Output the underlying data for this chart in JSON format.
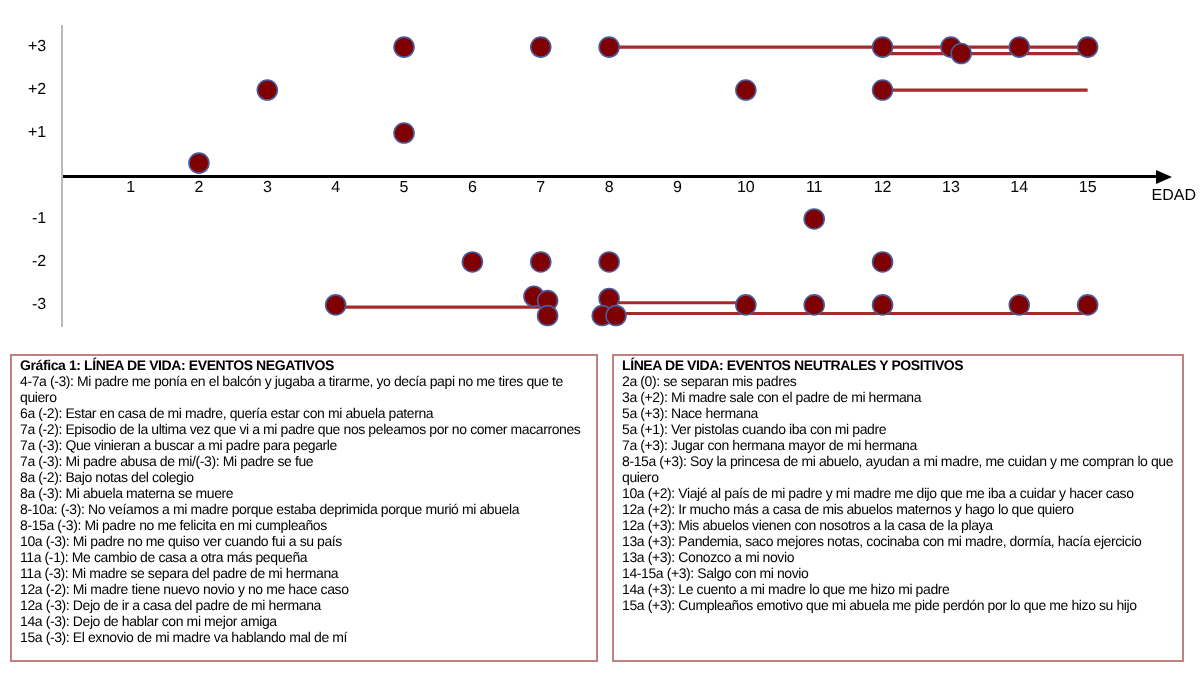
{
  "chart_data": [
    {
      "type": "scatter",
      "xlabel": "EDAD",
      "xlim": [
        0,
        16
      ],
      "xticks": [
        1,
        2,
        3,
        4,
        5,
        6,
        7,
        8,
        9,
        10,
        11,
        12,
        13,
        14,
        15
      ],
      "ylim": [
        -3.5,
        3.5
      ],
      "yticks": [
        {
          "value": 3,
          "label": "+3"
        },
        {
          "value": 2,
          "label": "+2"
        },
        {
          "value": 1,
          "label": "+1"
        },
        {
          "value": -1,
          "label": "-1"
        },
        {
          "value": -2,
          "label": "-2"
        },
        {
          "value": -3,
          "label": "-3"
        }
      ],
      "grid": false,
      "legend": false,
      "series": [
        {
          "type": "scatter",
          "marker": "circle",
          "color": "#7f0000",
          "x": [
            2,
            3,
            5,
            5,
            7,
            8,
            10,
            12,
            12,
            13,
            13.15,
            14,
            15,
            4,
            6,
            7,
            6.9,
            7.1,
            7.1,
            8,
            8,
            7.9,
            8.1,
            10,
            11,
            11,
            12,
            12,
            14,
            15
          ],
          "values": [
            0.3,
            2,
            3,
            1,
            3,
            3,
            2,
            3,
            2,
            3,
            2.85,
            3,
            3,
            -3,
            -2,
            -2,
            -2.8,
            -2.9,
            -3.25,
            -2,
            -2.85,
            -3.25,
            -3.25,
            -3,
            -1,
            -3,
            -2,
            -3,
            -3,
            -3
          ]
        },
        {
          "type": "line",
          "marker": "none",
          "color": "#a52a2a",
          "x": [
            8,
            15
          ],
          "values": [
            3,
            3
          ]
        },
        {
          "type": "line",
          "marker": "none",
          "color": "#a52a2a",
          "x": [
            12,
            15
          ],
          "values": [
            2.85,
            2.85
          ]
        },
        {
          "type": "line",
          "marker": "none",
          "color": "#a52a2a",
          "x": [
            12,
            15
          ],
          "values": [
            2,
            2
          ]
        },
        {
          "type": "line",
          "marker": "none",
          "color": "#a52a2a",
          "x": [
            4,
            7
          ],
          "values": [
            -3.05,
            -3.05
          ]
        },
        {
          "type": "line",
          "marker": "none",
          "color": "#a52a2a",
          "x": [
            8,
            10
          ],
          "values": [
            -2.95,
            -2.95
          ]
        },
        {
          "type": "line",
          "marker": "none",
          "color": "#a52a2a",
          "x": [
            8,
            15
          ],
          "values": [
            -3.2,
            -3.2
          ]
        }
      ]
    },
    {
      "type": "other",
      "title": "Gráfica 1: LÍNEA DE VIDA: EVENTOS NEGATIVOS",
      "annotations": [
        "4-7a (-3): Mi padre me ponía en el balcón y jugaba a tirarme, yo decía papi no me tires que te quiero",
        "6a (-2): Estar en casa de mi madre, quería estar con mi abuela paterna",
        "7a (-2):  Episodio de la ultima vez que vi a mi padre que nos peleamos por no comer macarrones",
        "7a (-3): Que vinieran a buscar a mi padre para pegarle",
        "7a (-3): Mi padre abusa de mi/(-3): Mi padre se fue",
        "8a (-2): Bajo notas del colegio",
        "8a (-3): Mi abuela materna se muere",
        "8-10a: (-3): No veíamos a mi madre porque estaba deprimida porque murió mi abuela",
        "8-15a (-3): Mi padre no me felicita en mi cumpleaños",
        "10a (-3): Mi padre no me quiso ver cuando fui a su país",
        "11a (-1): Me cambio de casa a otra más pequeña",
        "11a (-3): Mi madre se separa del padre de mi hermana",
        "12a (-2): Mi madre tiene nuevo novio y no me hace caso",
        "12a (-3): Dejo de ir a casa del padre de mi hermana",
        "14a (-3): Dejo de hablar con mi mejor amiga",
        "15a (-3): El exnovio de mi madre va hablando mal de mí"
      ]
    },
    {
      "type": "other",
      "title": "LÍNEA DE VIDA: EVENTOS NEUTRALES Y POSITIVOS",
      "annotations": [
        "2a (0): se separan mis padres",
        "3a (+2): Mi madre sale con el padre de mi hermana",
        "5a (+3): Nace hermana",
        "5a (+1): Ver pistolas cuando iba con mi padre",
        "7a (+3): Jugar con hermana mayor de mi hermana",
        "8-15a (+3): Soy la princesa de mi abuelo, ayudan a mi madre, me cuidan y me compran lo que quiero",
        "10a (+2): Viajé al país de mi padre y mi madre me dijo que me iba a cuidar y hacer caso",
        "12a (+2): Ir mucho más a casa de mis abuelos maternos y hago lo que quiero",
        "12a (+3): Mis abuelos vienen con nosotros a la casa de la playa",
        "13a (+3): Pandemia, saco mejores notas, cocinaba con mi madre, dormía, hacía ejercicio",
        "13a (+3): Conozco a mi novio",
        "14-15a (+3): Salgo con mi novio",
        "14a (+3): Le cuento a mi madre lo que me hizo mi padre",
        "15a (+3): Cumpleaños emotivo que mi abuela me pide perdón por lo que me hizo su hijo"
      ]
    }
  ]
}
